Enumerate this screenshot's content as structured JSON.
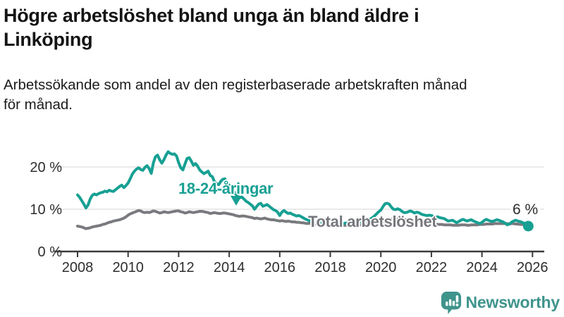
{
  "header": {
    "title_lines": [
      "Högre arbetslöshet bland unga än bland äldre i",
      "Linköping"
    ],
    "subtitle_lines": [
      "Arbetssökande som andel av den registerbaserade arbetskraften månad",
      "för månad."
    ]
  },
  "chart_data": {
    "type": "line",
    "unit": "%",
    "x_axis": {
      "ticks": [
        2008,
        2010,
        2012,
        2014,
        2016,
        2018,
        2020,
        2022,
        2024,
        2026
      ],
      "range": [
        2007.1,
        2026.5
      ]
    },
    "y_axis": {
      "ticks": [
        {
          "value": 0,
          "label": "0 %"
        },
        {
          "value": 10,
          "label": "10 %"
        },
        {
          "value": 20,
          "label": "20 %"
        }
      ],
      "range": [
        0,
        25
      ],
      "gridlines": true
    },
    "series": [
      {
        "name": "Total arbetslöshet",
        "color": "#797a7e",
        "start_year": 2008,
        "points_per_year": 12,
        "values": [
          6.0,
          5.9,
          5.8,
          5.6,
          5.4,
          5.5,
          5.6,
          5.8,
          5.9,
          6.0,
          6.1,
          6.2,
          6.4,
          6.5,
          6.7,
          6.9,
          7.0,
          7.2,
          7.3,
          7.4,
          7.5,
          7.7,
          7.9,
          8.2,
          8.6,
          8.9,
          9.1,
          9.3,
          9.5,
          9.7,
          9.6,
          9.3,
          9.2,
          9.3,
          9.2,
          9.4,
          9.6,
          9.5,
          9.3,
          9.1,
          9.2,
          9.4,
          9.3,
          9.2,
          9.3,
          9.4,
          9.5,
          9.6,
          9.6,
          9.4,
          9.3,
          9.1,
          9.2,
          9.4,
          9.3,
          9.2,
          9.3,
          9.4,
          9.5,
          9.5,
          9.4,
          9.3,
          9.2,
          9.0,
          9.1,
          9.2,
          9.1,
          9.0,
          9.0,
          9.1,
          9.1,
          9.0,
          8.9,
          8.8,
          8.7,
          8.5,
          8.4,
          8.3,
          8.4,
          8.4,
          8.3,
          8.2,
          8.1,
          8.0,
          7.8,
          7.9,
          7.8,
          7.7,
          7.8,
          7.9,
          7.7,
          7.6,
          7.5,
          7.5,
          7.4,
          7.3,
          7.2,
          7.3,
          7.2,
          7.1,
          7.2,
          7.1,
          7.0,
          7.0,
          6.9,
          6.9,
          6.8,
          6.8,
          6.7,
          6.6,
          6.7,
          6.6,
          6.6,
          6.5,
          6.5,
          6.4,
          6.4,
          6.4,
          6.4,
          6.4,
          6.4,
          6.3,
          6.4,
          6.3,
          6.3,
          6.2,
          6.2,
          6.2,
          6.2,
          6.2,
          6.2,
          6.2,
          6.2,
          6.3,
          6.3,
          6.3,
          6.4,
          6.4,
          6.5,
          6.5,
          6.6,
          6.6,
          6.7,
          6.7,
          6.8,
          7.0,
          7.2,
          7.4,
          7.5,
          7.6,
          7.7,
          7.7,
          7.6,
          7.6,
          7.5,
          7.5,
          7.5,
          7.4,
          7.4,
          7.3,
          7.2,
          7.1,
          7.1,
          7.0,
          6.9,
          6.9,
          6.8,
          6.7,
          6.6,
          6.5,
          6.5,
          6.4,
          6.4,
          6.4,
          6.3,
          6.3,
          6.3,
          6.3,
          6.2,
          6.2,
          6.2,
          6.2,
          6.3,
          6.3,
          6.3,
          6.2,
          6.2,
          6.3,
          6.3,
          6.3,
          6.3,
          6.4,
          6.4,
          6.4,
          6.5,
          6.5,
          6.5,
          6.5,
          6.6,
          6.6,
          6.6,
          6.6,
          6.6,
          6.6,
          6.6,
          6.5,
          6.6,
          6.6,
          6.5,
          6.5,
          6.4,
          6.4,
          6.4,
          6.4,
          6.4
        ]
      },
      {
        "name": "18-24-åringar",
        "color": "#17a093",
        "start_year": 2008,
        "points_per_year": 12,
        "end_dot": true,
        "end_label": "6 %",
        "values": [
          13.4,
          12.8,
          12.0,
          11.2,
          10.3,
          11.0,
          12.4,
          13.3,
          13.6,
          13.4,
          13.7,
          13.9,
          14.0,
          14.3,
          14.1,
          14.5,
          14.3,
          14.2,
          14.6,
          15.0,
          15.4,
          15.7,
          15.1,
          15.6,
          16.2,
          17.2,
          18.3,
          19.0,
          19.5,
          19.8,
          19.4,
          19.2,
          19.9,
          20.3,
          19.6,
          18.5,
          21.0,
          22.4,
          22.8,
          21.7,
          20.9,
          21.7,
          22.8,
          23.6,
          23.2,
          23.0,
          23.1,
          22.6,
          21.0,
          19.8,
          19.3,
          20.7,
          22.0,
          22.2,
          21.4,
          20.4,
          20.8,
          20.2,
          19.3,
          18.8,
          18.4,
          18.7,
          19.0,
          18.0,
          17.7,
          16.5,
          16.0,
          15.8,
          16.6,
          17.1,
          17.2,
          16.3,
          15.6,
          15.0,
          14.3,
          13.7,
          13.1,
          12.7,
          12.9,
          12.4,
          11.9,
          11.6,
          11.2,
          10.8,
          10.0,
          10.6,
          11.2,
          11.4,
          10.7,
          10.9,
          11.1,
          10.7,
          10.3,
          9.9,
          9.7,
          9.3,
          8.5,
          9.3,
          9.7,
          9.3,
          9.0,
          9.1,
          8.8,
          8.6,
          8.4,
          8.5,
          8.3,
          8.0,
          7.7,
          7.5,
          7.3,
          7.1,
          7.0,
          6.9,
          6.9,
          6.8,
          6.7,
          6.7,
          6.6,
          6.6,
          6.6,
          6.7,
          6.6,
          6.5,
          6.6,
          6.5,
          6.6,
          6.7,
          6.7,
          6.8,
          6.8,
          6.9,
          6.9,
          7.0,
          7.0,
          7.1,
          7.2,
          7.3,
          7.5,
          7.7,
          8.0,
          8.4,
          8.9,
          9.4,
          9.8,
          10.6,
          11.3,
          11.4,
          11.2,
          10.5,
          10.0,
          9.9,
          10.1,
          9.9,
          9.5,
          9.2,
          9.2,
          9.4,
          9.6,
          9.4,
          9.1,
          9.3,
          9.2,
          8.9,
          8.7,
          8.6,
          8.5,
          8.6,
          8.5,
          8.3,
          8.1,
          8.2,
          8.0,
          7.9,
          7.8,
          7.5,
          7.2,
          7.3,
          7.4,
          7.1,
          6.8,
          7.1,
          7.4,
          7.6,
          7.4,
          7.2,
          7.4,
          7.5,
          7.2,
          7.0,
          6.8,
          6.6,
          6.9,
          7.3,
          7.6,
          7.4,
          7.2,
          7.1,
          7.3,
          7.5,
          7.4,
          7.2,
          7.0,
          6.7,
          6.3,
          6.5,
          6.9,
          7.2,
          7.4,
          7.2,
          7.1,
          6.9,
          6.7,
          6.3,
          6.0
        ]
      }
    ],
    "annotations": {
      "youth_series_label": "18-24-åringar",
      "total_series_label": "Total arbetslöshet",
      "end_value_label": "6 %"
    }
  },
  "footer": {
    "brand": "Newsworthy"
  },
  "colors": {
    "accent_teal": "#17a093",
    "line_gray": "#797a7e",
    "label_gray": "#76777c",
    "axis": "#3b3b3b",
    "gridline": "#e4e4e4",
    "text": "#141414",
    "brand_teal": "#3f948c"
  }
}
